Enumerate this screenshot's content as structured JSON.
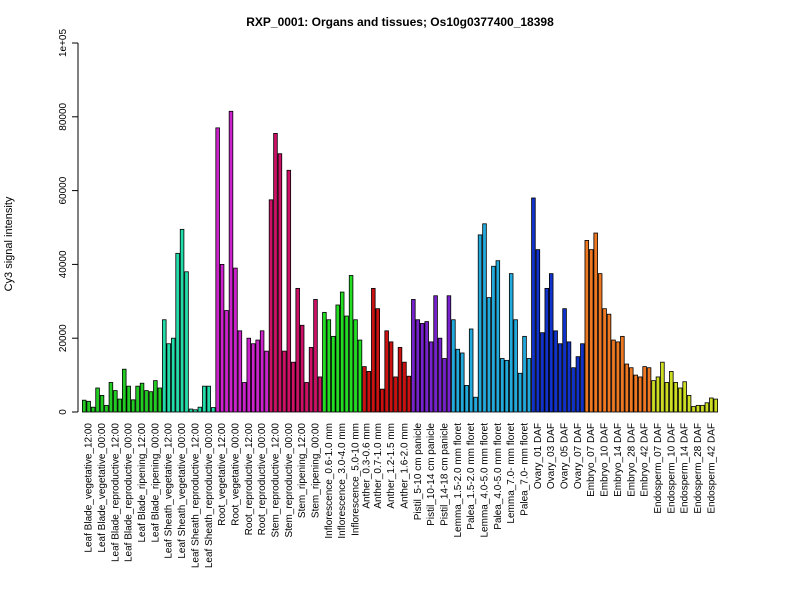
{
  "chart_data": {
    "type": "bar",
    "title": "RXP_0001: Organs and tissues; Os10g0377400_18398",
    "xlabel": "",
    "ylabel": "Cy3 signal intensity",
    "ylim": [
      0,
      100000
    ],
    "yticks": [
      0,
      20000,
      40000,
      60000,
      80000,
      100000
    ],
    "ytick_labels": [
      "0",
      "20000",
      "40000",
      "60000",
      "80000",
      "1e+05"
    ],
    "grid": false,
    "legend": "none",
    "groups": [
      {
        "label": "Leaf Blade_vegetative_12:00",
        "color": "#22cc22",
        "values": [
          3200,
          2900,
          1300
        ]
      },
      {
        "label": "Leaf Blade_vegetative_00:00",
        "color": "#22cc22",
        "values": [
          6500,
          4500,
          1800
        ]
      },
      {
        "label": "Leaf Blade_reproductive_12:00",
        "color": "#22cc22",
        "values": [
          8000,
          5800,
          3500
        ]
      },
      {
        "label": "Leaf Blade_reproductive_00:00",
        "color": "#22cc22",
        "values": [
          11600,
          7000,
          3300
        ]
      },
      {
        "label": "Leaf Blade_ripening_12:00",
        "color": "#22cc22",
        "values": [
          7000,
          7800,
          5800
        ]
      },
      {
        "label": "Leaf Blade_ripening_00:00",
        "color": "#22cc22",
        "values": [
          5500,
          8500,
          6500
        ]
      },
      {
        "label": "Leaf Sheath_vegetative_12:00",
        "color": "#22ddaa",
        "values": [
          25000,
          18500,
          20000
        ]
      },
      {
        "label": "Leaf Sheath_vegetative_00:00",
        "color": "#22ddaa",
        "values": [
          43000,
          49500,
          38000
        ]
      },
      {
        "label": "Leaf Sheath_reproductive_12:00",
        "color": "#22ddaa",
        "values": [
          800,
          600,
          1300
        ]
      },
      {
        "label": "Leaf Sheath_reproductive_00:00",
        "color": "#22ddaa",
        "values": [
          7000,
          7000,
          1200
        ]
      },
      {
        "label": "Root_vegetative_12:00",
        "color": "#cc22cc",
        "values": [
          77000,
          40000,
          27500
        ]
      },
      {
        "label": "Root_vegetative_00:00",
        "color": "#cc22cc",
        "values": [
          81500,
          39000,
          22000
        ]
      },
      {
        "label": "Root_reproductive_12:00",
        "color": "#cc22cc",
        "values": [
          8000,
          20000,
          18500
        ]
      },
      {
        "label": "Root_reproductive_00:00",
        "color": "#cc22cc",
        "values": [
          19500,
          22000,
          16500
        ]
      },
      {
        "label": "Stem_reproductive_12:00",
        "color": "#cc1166",
        "values": [
          57500,
          75500,
          70000
        ]
      },
      {
        "label": "Stem_reproductive_00:00",
        "color": "#cc1166",
        "values": [
          16500,
          65500,
          13500
        ]
      },
      {
        "label": "Stem_ripening_12:00",
        "color": "#cc1166",
        "values": [
          33500,
          23500,
          8000
        ]
      },
      {
        "label": "Stem_ripening_00:00",
        "color": "#cc1166",
        "values": [
          17500,
          30500,
          9500
        ]
      },
      {
        "label": "Inflorescence_0.6-1.0 mm",
        "color": "#22dd22",
        "values": [
          27000,
          25000,
          20500
        ]
      },
      {
        "label": "Inflorescence_3.0-4.0 mm",
        "color": "#22dd22",
        "values": [
          29000,
          32500,
          26000
        ]
      },
      {
        "label": "Inflorescence_5.0-10 mm",
        "color": "#22dd22",
        "values": [
          37000,
          25000,
          19500
        ]
      },
      {
        "label": "Anther_0.3-0.6 mm",
        "color": "#cc1111",
        "values": [
          12300,
          11000
        ]
      },
      {
        "label": "Anther_0.7-1.0 mm",
        "color": "#cc1111",
        "values": [
          33500,
          28000,
          6200
        ]
      },
      {
        "label": "Anther_1.2-1.5 mm",
        "color": "#cc1111",
        "values": [
          22000,
          19000,
          9500
        ]
      },
      {
        "label": "Anther_1.6-2.0 mm",
        "color": "#cc1111",
        "values": [
          17500,
          13500,
          9700
        ]
      },
      {
        "label": "Pistil_5-10 cm panicle",
        "color": "#7722cc",
        "values": [
          30500,
          25000,
          24000
        ]
      },
      {
        "label": "Pistil_10-14 cm panicle",
        "color": "#7722cc",
        "values": [
          24500,
          19000,
          31500
        ]
      },
      {
        "label": "Pistil_14-18 cm panicle",
        "color": "#7722cc",
        "values": [
          20000,
          14500,
          31500
        ]
      },
      {
        "label": "Lemma_1.5-2.0 mm floret",
        "color": "#22aadd",
        "values": [
          25000,
          17000,
          16000
        ]
      },
      {
        "label": "Palea_1.5-2.0 mm floret",
        "color": "#22aadd",
        "values": [
          7200,
          22500,
          4000
        ]
      },
      {
        "label": "Lemma_4.0-5.0 mm floret",
        "color": "#22aadd",
        "values": [
          48000,
          51000,
          31000
        ]
      },
      {
        "label": "Palea_4.0-5.0 mm floret",
        "color": "#22aadd",
        "values": [
          39500,
          41000,
          14500
        ]
      },
      {
        "label": "Lemma_7.0- mm floret",
        "color": "#22aadd",
        "values": [
          14000,
          37500,
          25000
        ]
      },
      {
        "label": "Palea_7.0- mm floret",
        "color": "#22aadd",
        "values": [
          10500,
          20500,
          14500
        ]
      },
      {
        "label": "Ovary_01 DAF",
        "color": "#1133cc",
        "values": [
          58000,
          44000,
          21500
        ]
      },
      {
        "label": "Ovary_03 DAF",
        "color": "#1133cc",
        "values": [
          33500,
          37500,
          22000
        ]
      },
      {
        "label": "Ovary_05 DAF",
        "color": "#1133cc",
        "values": [
          18500,
          28000,
          19000
        ]
      },
      {
        "label": "Ovary_07 DAF",
        "color": "#1133cc",
        "values": [
          12000,
          15000,
          18500
        ]
      },
      {
        "label": "Embryo_07 DAF",
        "color": "#ee7722",
        "values": [
          46500,
          44000,
          48500
        ]
      },
      {
        "label": "Embryo_10 DAF",
        "color": "#ee7722",
        "values": [
          37500,
          28000,
          26500
        ]
      },
      {
        "label": "Embryo_14 DAF",
        "color": "#ee7722",
        "values": [
          19500,
          19000,
          20500
        ]
      },
      {
        "label": "Embryo_28 DAF",
        "color": "#ee7722",
        "values": [
          13000,
          12000,
          10000
        ]
      },
      {
        "label": "Embryo_42 DAF",
        "color": "#ee7722",
        "values": [
          9500,
          12300,
          12000
        ]
      },
      {
        "label": "Endosperm_07 DAF",
        "color": "#ccdd22",
        "values": [
          8500,
          9500,
          13500
        ]
      },
      {
        "label": "Endosperm_10 DAF",
        "color": "#ccdd22",
        "values": [
          8000,
          11000,
          8000
        ]
      },
      {
        "label": "Endosperm_14 DAF",
        "color": "#ccdd22",
        "values": [
          6500,
          8200,
          4500
        ]
      },
      {
        "label": "Endosperm_28 DAF",
        "color": "#ccdd22",
        "values": [
          1500,
          1800,
          1800
        ]
      },
      {
        "label": "Endosperm_42 DAF",
        "color": "#ccdd22",
        "values": [
          2500,
          3800,
          3500
        ]
      }
    ]
  }
}
